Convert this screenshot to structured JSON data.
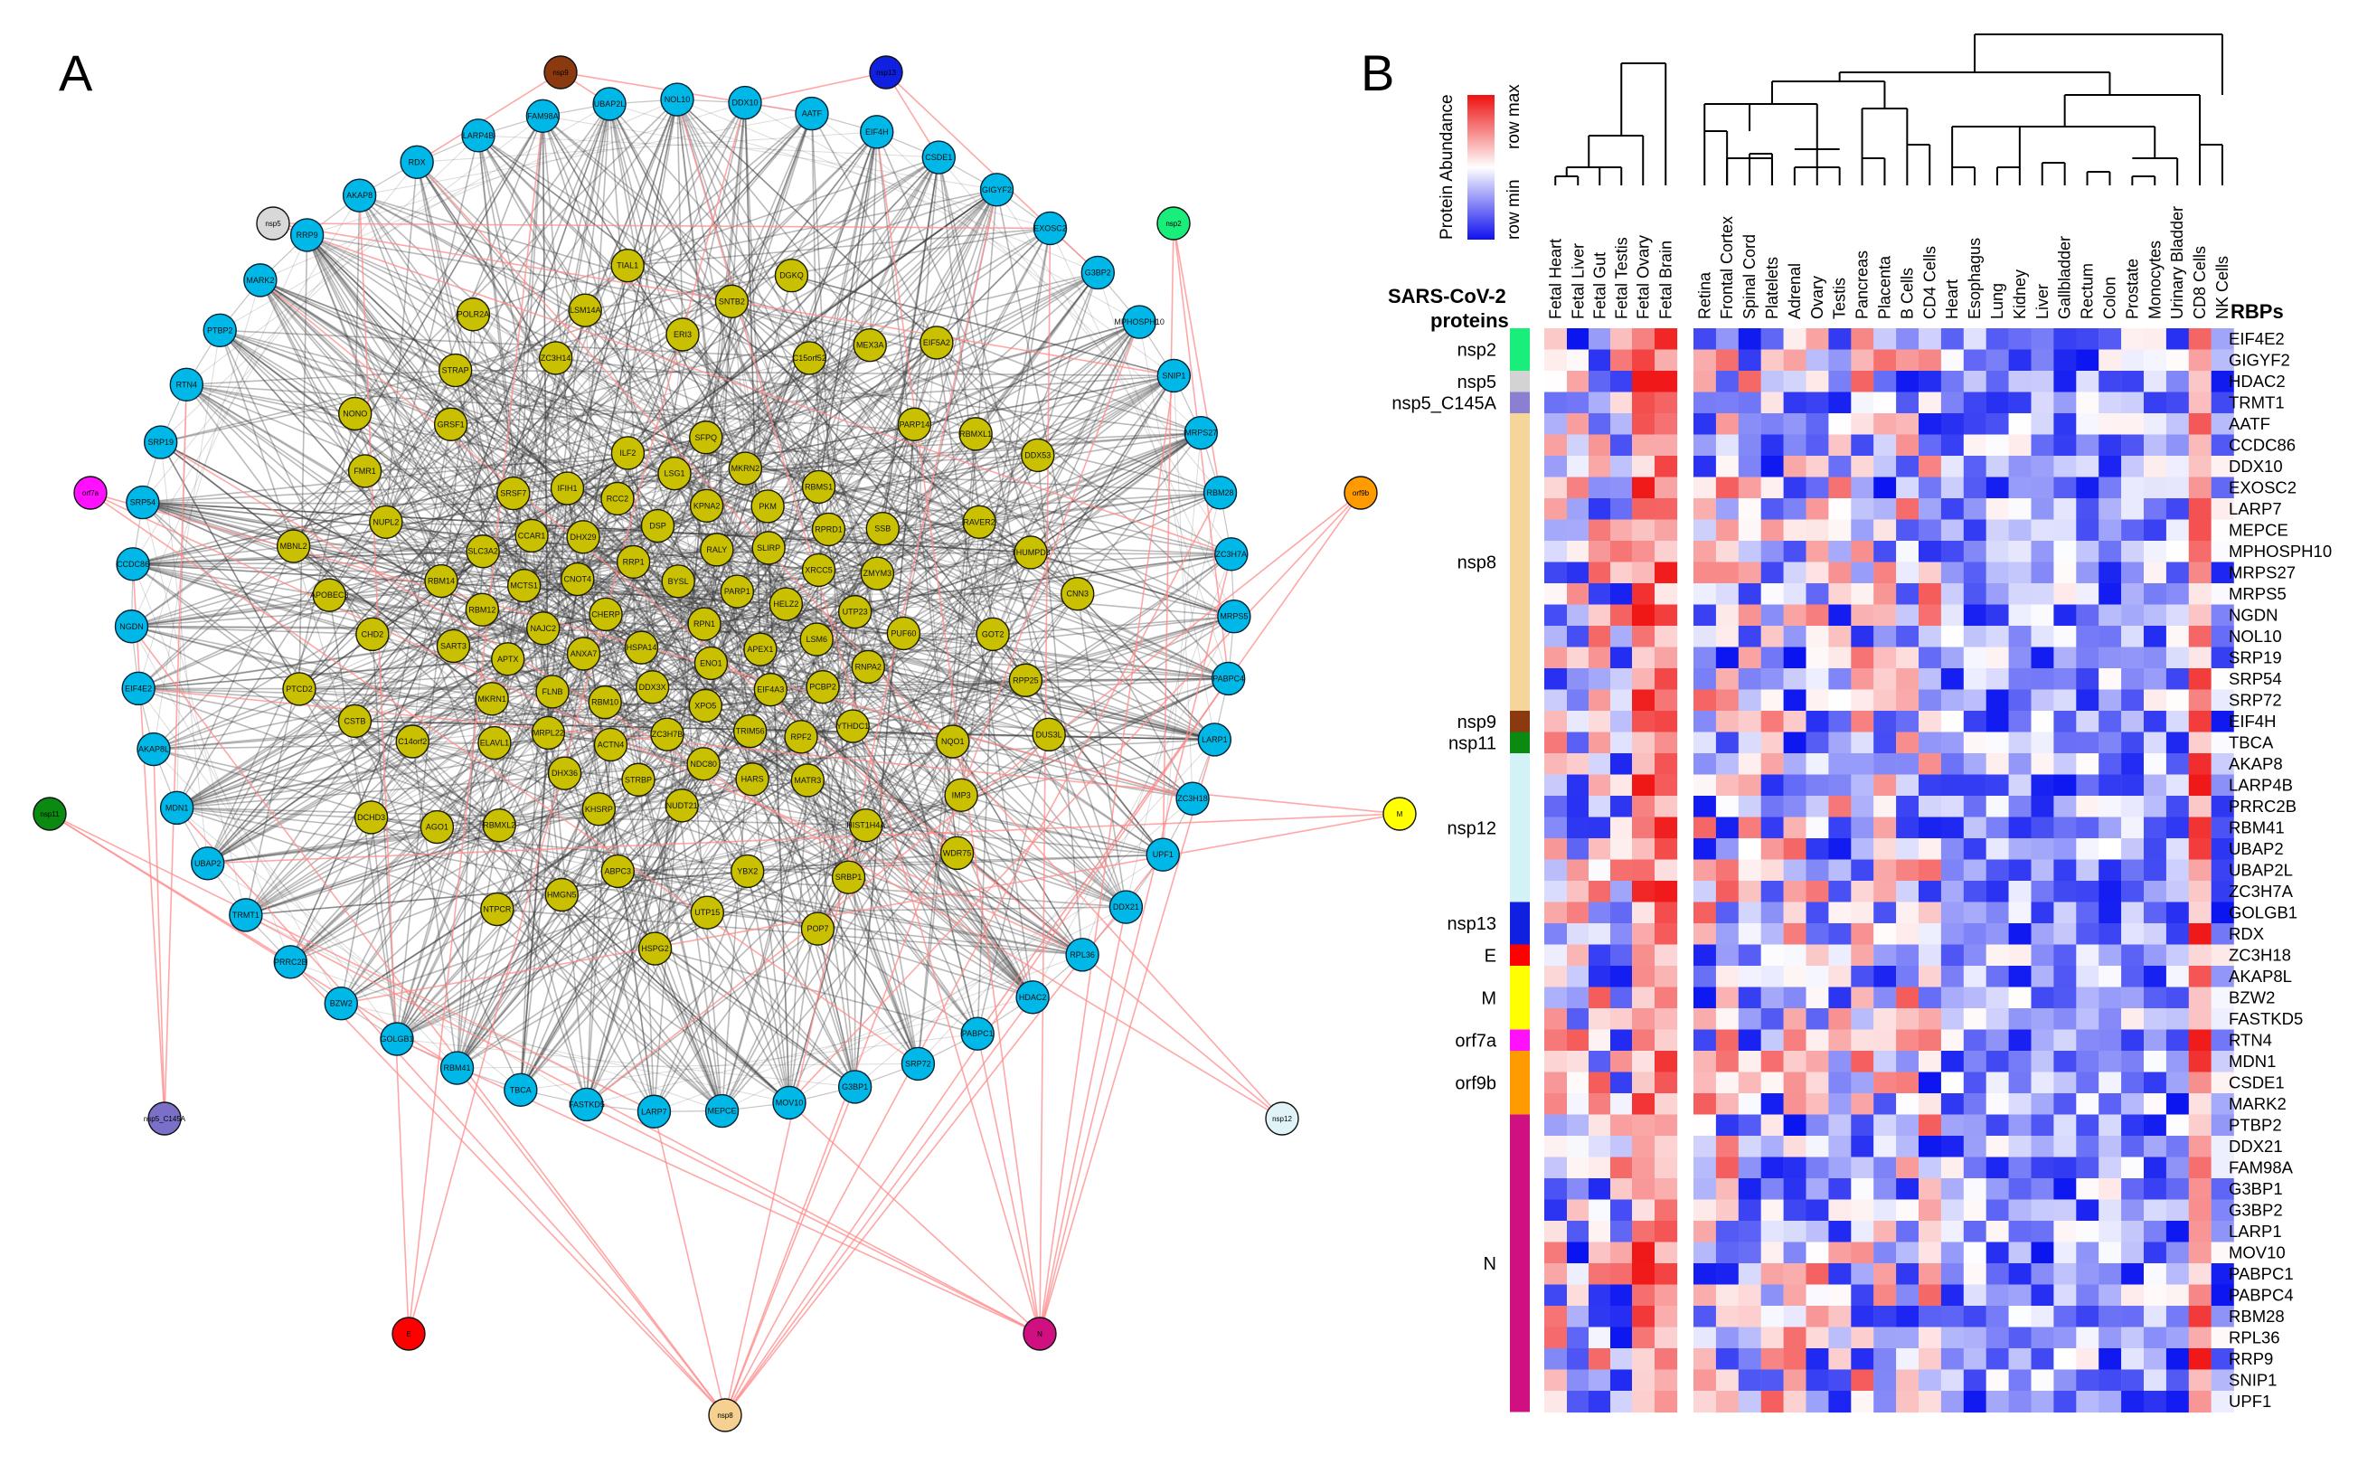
{
  "panels": {
    "a": "A",
    "b": "B"
  },
  "colors": {
    "human_node": "#00b8e8",
    "host_node": "#c8c000",
    "host_edge": "#3a3a3a",
    "viral_edge": "#ff8a8a",
    "heat_low": "#0a14f0",
    "heat_mid": "#ffffff",
    "heat_high": "#f01414"
  },
  "network": {
    "viral_nodes": [
      {
        "label": "nsp9",
        "color": "#8b3a0f"
      },
      {
        "label": "nsp13",
        "color": "#1020e0"
      },
      {
        "label": "nsp5",
        "color": "#d8d8d8"
      },
      {
        "label": "nsp2",
        "color": "#1aee7a"
      },
      {
        "label": "orf7a",
        "color": "#ff10ff"
      },
      {
        "label": "orf9b",
        "color": "#ff9a00"
      },
      {
        "label": "nsp11",
        "color": "#0a8a10"
      },
      {
        "label": "M",
        "color": "#ffff00"
      },
      {
        "label": "nsp5_C145A",
        "color": "#7a70c8"
      },
      {
        "label": "nsp12",
        "color": "#e0f4f8"
      },
      {
        "label": "E",
        "color": "#ff0000"
      },
      {
        "label": "N",
        "color": "#d01080"
      },
      {
        "label": "nsp8",
        "color": "#f5d090"
      }
    ],
    "ring_nodes": [
      "RDX",
      "LARP4B",
      "FAM98A",
      "UBAP2L",
      "NOL10",
      "DDX10",
      "AATF",
      "EIF4H",
      "CSDE1",
      "GIGYF2",
      "EXOSC2",
      "G3BP2",
      "MPHOSPH10",
      "SNIP1",
      "MRPS27",
      "RBM28",
      "ZC3H7A",
      "MRPS5",
      "PABPC4",
      "LARP1",
      "ZC3H18",
      "UPF1",
      "DDX21",
      "RPL36",
      "HDAC2",
      "PABPC1",
      "SRP72",
      "G3BP1",
      "MOV10",
      "MEPCE",
      "LARP7",
      "FASTKD5",
      "TBCA",
      "RBM41",
      "GOLGB1",
      "BZW2",
      "PRRC2B",
      "TRMT1",
      "UBAP2",
      "MDN1",
      "AKAP8L",
      "EIF4E2",
      "NGDN",
      "CCDC86",
      "SRP54",
      "SRP19",
      "RTN4",
      "PTBP2",
      "MARK2",
      "RRP9",
      "AKAP8"
    ],
    "outer_host_nodes": [
      "ERI3",
      "SNTB2",
      "DGKQ",
      "C15orf52",
      "MEX3A",
      "EIF5A2",
      "PARP14",
      "RBMXL1",
      "DDX53",
      "RAVER2",
      "THUMPD3",
      "CNN3",
      "GOT2",
      "RPP25",
      "DUS3L",
      "NQO1",
      "IMP3",
      "WDR75",
      "HIST1H4A",
      "SRBP1",
      "POP7",
      "YBX2",
      "UTP15",
      "HSPG2",
      "ABPC3",
      "HMGN5",
      "NTPCR",
      "RBMXL2",
      "AGO1",
      "DCHD3",
      "C14orf2",
      "CSTB",
      "PTCD2",
      "CHD2",
      "APOBEC3",
      "MBNL2",
      "NUPL2",
      "FMR1",
      "NONO",
      "GRSF1",
      "STRAP",
      "POLR2A",
      "ZC3H14",
      "LSM14A",
      "TIAL1"
    ],
    "core_host_nodes": [
      "RPN1",
      "HSPA14",
      "BYSL",
      "ENO1",
      "CHERP",
      "PARP1",
      "DDX3X",
      "RRP1",
      "APEX1",
      "ANXA7",
      "RALY",
      "XPO5",
      "CNOT4",
      "HELZ2",
      "RBM10",
      "DSP",
      "EIF4A3",
      "NAJC2",
      "SLIRP",
      "ZC3H7B",
      "DHX29",
      "LSM6",
      "FLNB",
      "KPNA2",
      "TRIM56",
      "MCTS1",
      "XRCC5",
      "ACTN4",
      "RCC2",
      "PCBP2",
      "APTX",
      "PKM",
      "NDC80",
      "CCAR1",
      "UTP23",
      "MRPL22",
      "LSG1",
      "RPF2",
      "RBM12",
      "RPRD1",
      "STRBP",
      "IFIH1",
      "RNPA2",
      "MKRN1",
      "MKRN2",
      "HARS",
      "SLC3A2",
      "ZMYM3",
      "DHX36",
      "ILF2",
      "YTHDC1",
      "SART3",
      "RBMS1",
      "NUDT21",
      "SRSF7",
      "PUF60",
      "ELAVL1",
      "SFPQ",
      "MATR3",
      "RBM14",
      "SSB",
      "KHSRP"
    ]
  },
  "heatmap": {
    "legend_title": "Protein Abundance",
    "legend_max": "row max",
    "legend_min": "row min",
    "viral_header": [
      "SARS-CoV-2",
      "proteins"
    ],
    "rbp_header": "RBPs",
    "fetal_columns": [
      "Fetal Heart",
      "Fetal Liver",
      "Fetal Gut",
      "Fetal Testis",
      "Fetal Ovary",
      "Fetal Brain"
    ],
    "adult_columns": [
      "Retina",
      "Frontal Cortex",
      "Spinal Cord",
      "Platelets",
      "Adrenal",
      "Ovary",
      "Testis",
      "Pancreas",
      "Placenta",
      "B Cells",
      "CD4 Cells",
      "Heart",
      "Esophagus",
      "Lung",
      "Kidney",
      "Liver",
      "Gallbladder",
      "Rectum",
      "Colon",
      "Prostate",
      "Monocytes",
      "Urinary Bladder",
      "CD8 Cells",
      "NK Cells"
    ],
    "rows": [
      "EIF4E2",
      "GIGYF2",
      "HDAC2",
      "TRMT1",
      "AATF",
      "CCDC86",
      "DDX10",
      "EXOSC2",
      "LARP7",
      "MEPCE",
      "MPHOSPH10",
      "MRPS27",
      "MRPS5",
      "NGDN",
      "NOL10",
      "SRP19",
      "SRP54",
      "SRP72",
      "EIF4H",
      "TBCA",
      "AKAP8",
      "LARP4B",
      "PRRC2B",
      "RBM41",
      "UBAP2",
      "UBAP2L",
      "ZC3H7A",
      "GOLGB1",
      "RDX",
      "ZC3H18",
      "AKAP8L",
      "BZW2",
      "FASTKD5",
      "RTN4",
      "MDN1",
      "CSDE1",
      "MARK2",
      "PTBP2",
      "DDX21",
      "FAM98A",
      "G3BP1",
      "G3BP2",
      "LARP1",
      "MOV10",
      "PABPC1",
      "PABPC4",
      "RBM28",
      "RPL36",
      "RRP9",
      "SNIP1",
      "UPF1"
    ],
    "row_groups": [
      {
        "label": "nsp2",
        "start": 0,
        "end": 1,
        "color": "#1aee7a"
      },
      {
        "label": "nsp5",
        "start": 2,
        "end": 2,
        "color": "#d3d3d3"
      },
      {
        "label": "nsp5_C145A",
        "start": 3,
        "end": 3,
        "color": "#8a7fd0"
      },
      {
        "label": "nsp8",
        "start": 4,
        "end": 17,
        "color": "#f5d59a"
      },
      {
        "label": "nsp9",
        "start": 18,
        "end": 18,
        "color": "#8b3a0f"
      },
      {
        "label": "nsp11",
        "start": 19,
        "end": 19,
        "color": "#0a8a10"
      },
      {
        "label": "nsp12",
        "start": 20,
        "end": 26,
        "color": "#d2f2f8"
      },
      {
        "label": "nsp13",
        "start": 27,
        "end": 28,
        "color": "#1020e0"
      },
      {
        "label": "E",
        "start": 29,
        "end": 29,
        "color": "#ff0000"
      },
      {
        "label": "M",
        "start": 30,
        "end": 32,
        "color": "#ffff00"
      },
      {
        "label": "orf7a",
        "start": 33,
        "end": 33,
        "color": "#ff10ff"
      },
      {
        "label": "orf9b",
        "start": 34,
        "end": 36,
        "color": "#ff9a00"
      },
      {
        "label": "N",
        "start": 37,
        "end": 50,
        "color": "#d01080"
      }
    ]
  }
}
